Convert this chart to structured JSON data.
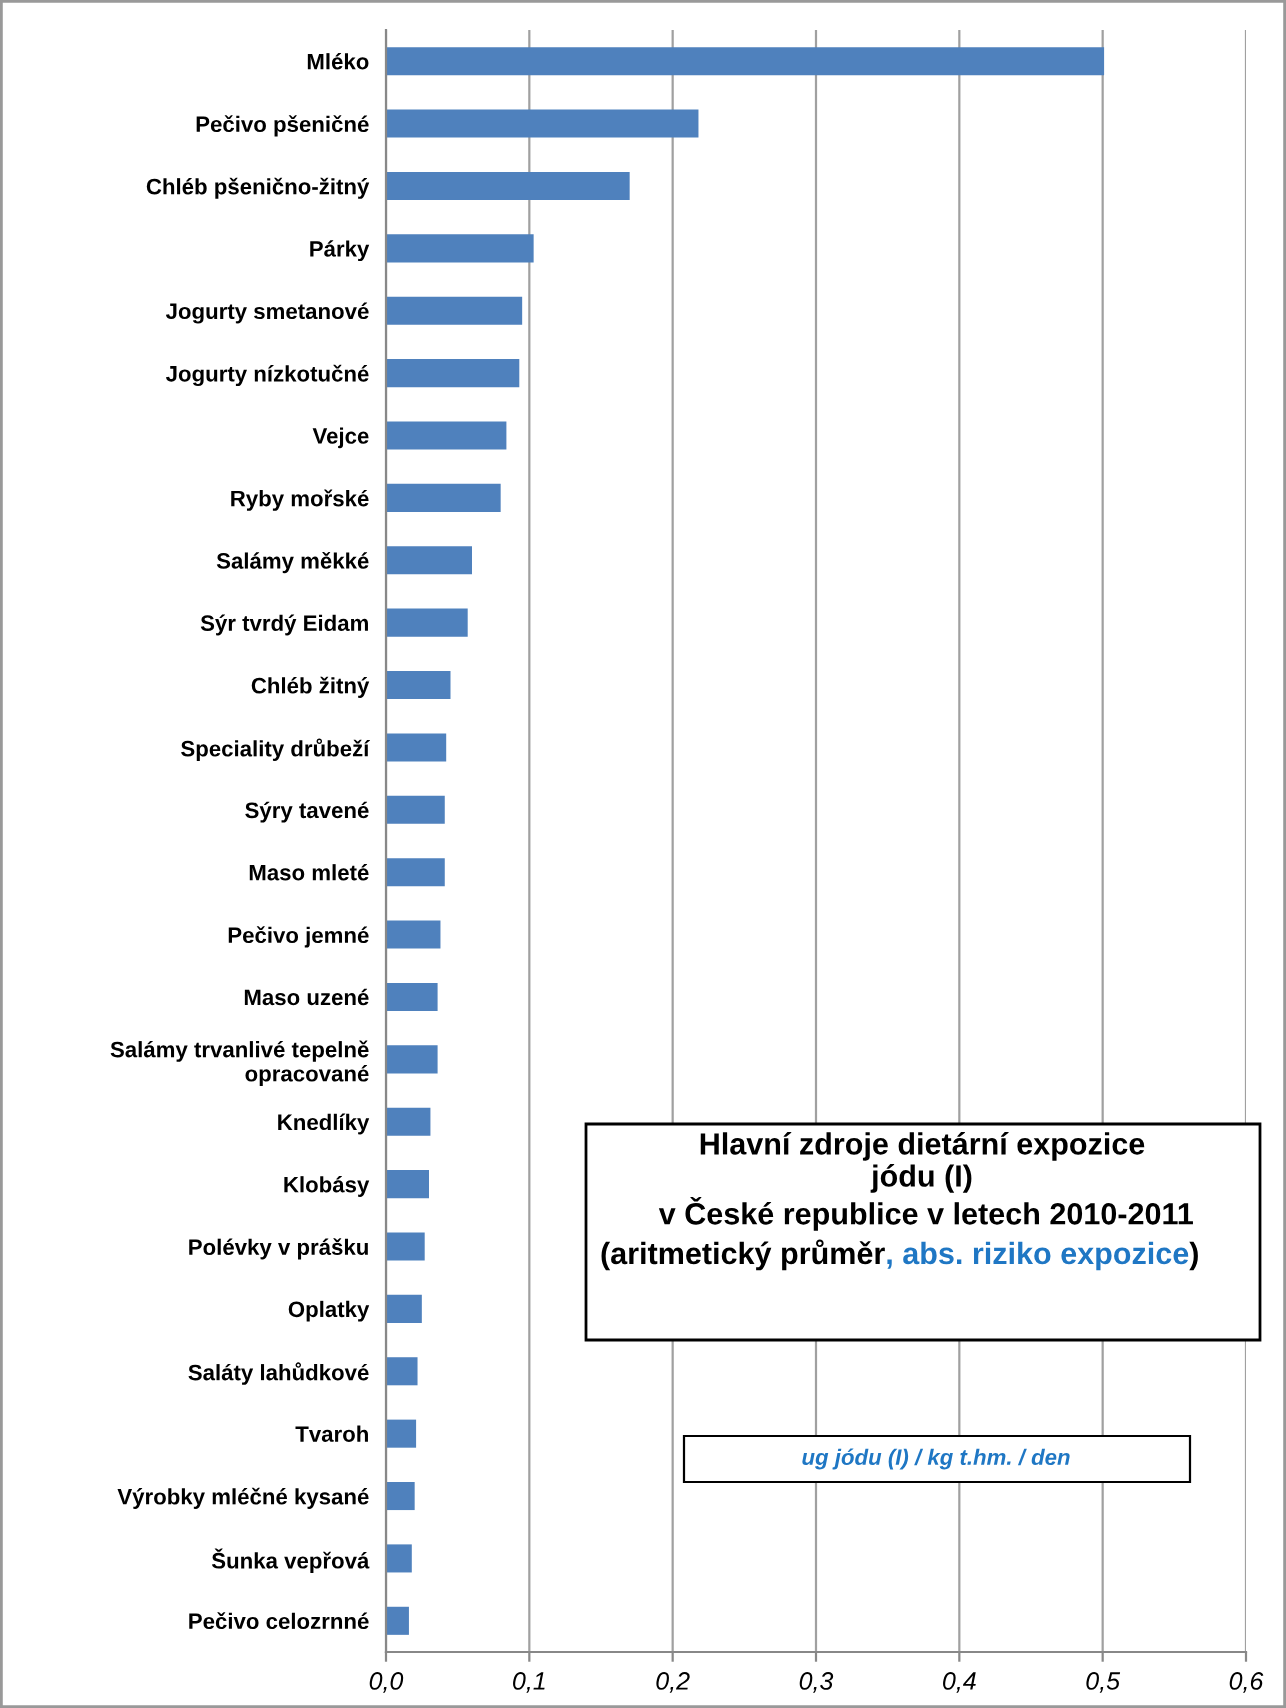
{
  "chart_data": {
    "type": "bar",
    "orientation": "horizontal",
    "categories": [
      "Mléko",
      "Pečivo pšeničné",
      "Chléb pšenično-žitný",
      "Párky",
      "Jogurty smetanové",
      "Jogurty nízkotučné",
      "Vejce",
      "Ryby mořské",
      "Salámy měkké",
      "Sýr tvrdý Eidam",
      "Chléb žitný",
      "Speciality drůbeží",
      "Sýry tavené",
      "Maso mleté",
      "Pečivo jemné",
      "Maso uzené",
      "Salámy trvanlivé tepelně\nopracované",
      "Knedlíky",
      "Klobásy",
      "Polévky v prášku",
      "Oplatky",
      "Saláty lahůdkové",
      "Tvaroh",
      "Výrobky mléčné kysané",
      "Šunka vepřová",
      "Pečivo celozrnné"
    ],
    "values": [
      0.501,
      0.218,
      0.17,
      0.103,
      0.095,
      0.093,
      0.084,
      0.08,
      0.06,
      0.057,
      0.045,
      0.042,
      0.041,
      0.041,
      0.038,
      0.036,
      0.036,
      0.031,
      0.03,
      0.027,
      0.025,
      0.022,
      0.021,
      0.02,
      0.018,
      0.016
    ],
    "color": "#4f81bd",
    "xlim": [
      0,
      0.6
    ],
    "xticks": [
      {
        "value": 0,
        "label": "0,0"
      },
      {
        "value": 0.1,
        "label": "0,1"
      },
      {
        "value": 0.2,
        "label": "0,2"
      },
      {
        "value": 0.3,
        "label": "0,3"
      },
      {
        "value": 0.4,
        "label": "0,4"
      },
      {
        "value": 0.5,
        "label": "0,5"
      },
      {
        "value": 0.6,
        "label": "0,6"
      }
    ],
    "grid": "x",
    "annotations": [
      "Hlavní zdroje dietární expozice\njódu (I)\n v České republice v letech 2010-2011",
      "(aritmetický průměr",
      ", abs. riziko expozice",
      ")",
      "ug jódu (I) / kg t.hm. / den"
    ]
  }
}
